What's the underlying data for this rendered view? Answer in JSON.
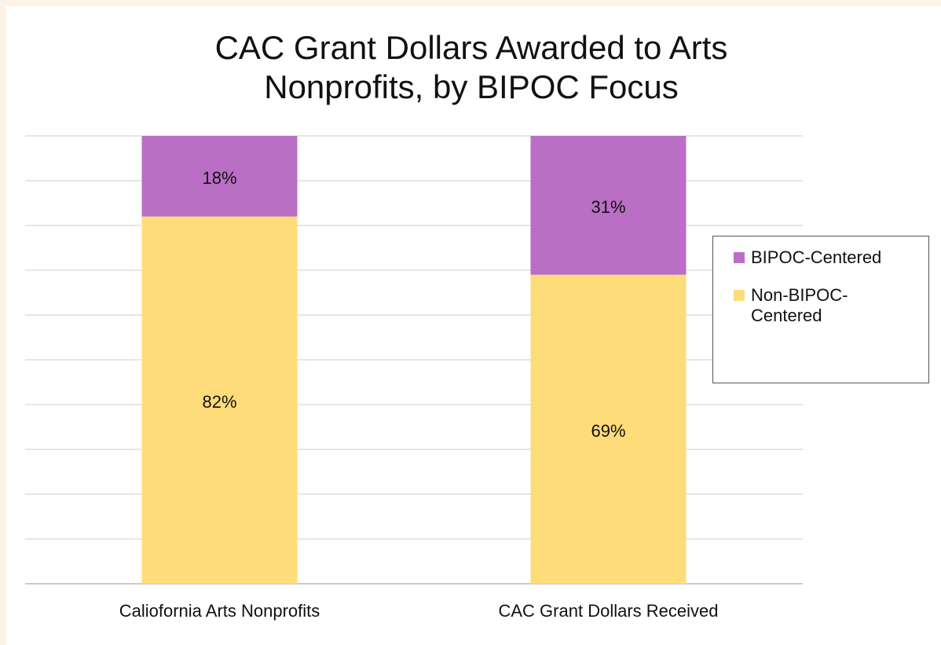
{
  "chart_data": {
    "type": "stacked_bar",
    "title": "CAC Grant Dollars Awarded to Arts Nonprofits, by BIPOC Focus",
    "categories": [
      "Caliofornia Arts Nonprofits",
      "CAC Grant Dollars Received"
    ],
    "series": [
      {
        "name": "BIPOC-Centered",
        "color": "#b96fc3",
        "values": [
          18,
          31
        ],
        "value_labels": [
          "18%",
          "31%"
        ]
      },
      {
        "name": "Non-BIPOC-Centered",
        "color": "#fedc7a",
        "values": [
          82,
          69
        ],
        "value_labels": [
          "82%",
          "69%"
        ]
      }
    ],
    "ylim": [
      0,
      100
    ],
    "yticks": [
      0,
      10,
      20,
      30,
      40,
      50,
      60,
      70,
      80,
      90,
      100
    ],
    "grid": true,
    "legend": "right"
  }
}
